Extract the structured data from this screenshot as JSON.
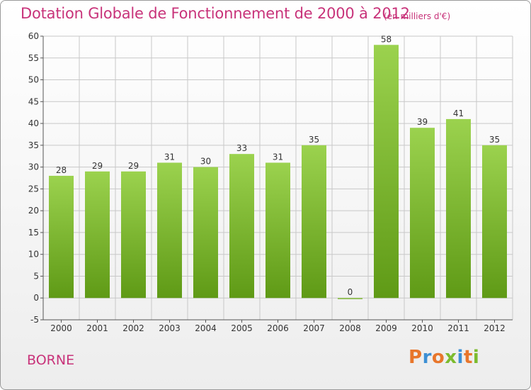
{
  "header": {
    "title": "Dotation Globale de Fonctionnement de 2000 à 2012",
    "unit": "(en milliers d'€)"
  },
  "footer": {
    "commune": "BORNE",
    "brand": "Proxiti"
  },
  "colors": {
    "title": "#c8337a",
    "bar_light": "#9bd24e",
    "bar_dark": "#5f9a16",
    "grid": "#c8c8c8",
    "axis": "#555555",
    "brand_letters": [
      "#e8762b",
      "#3c8fd4",
      "#e8762b",
      "#7cbb2e",
      "#3c8fd4",
      "#e8762b",
      "#7cbb2e"
    ]
  },
  "chart_data": {
    "type": "bar",
    "title": "Dotation Globale de Fonctionnement de 2000 à 2012",
    "subtitle": "(en milliers d'€)",
    "xlabel": "",
    "ylabel": "",
    "categories": [
      "2000",
      "2001",
      "2002",
      "2003",
      "2004",
      "2005",
      "2006",
      "2007",
      "2008",
      "2009",
      "2010",
      "2011",
      "2012"
    ],
    "values": [
      28,
      29,
      29,
      31,
      30,
      33,
      31,
      35,
      0,
      58,
      39,
      41,
      35
    ],
    "ylim": [
      -5,
      60
    ],
    "yticks": [
      -5,
      0,
      5,
      10,
      15,
      20,
      25,
      30,
      35,
      40,
      45,
      50,
      55,
      60
    ],
    "grid": true,
    "legend": "none"
  }
}
